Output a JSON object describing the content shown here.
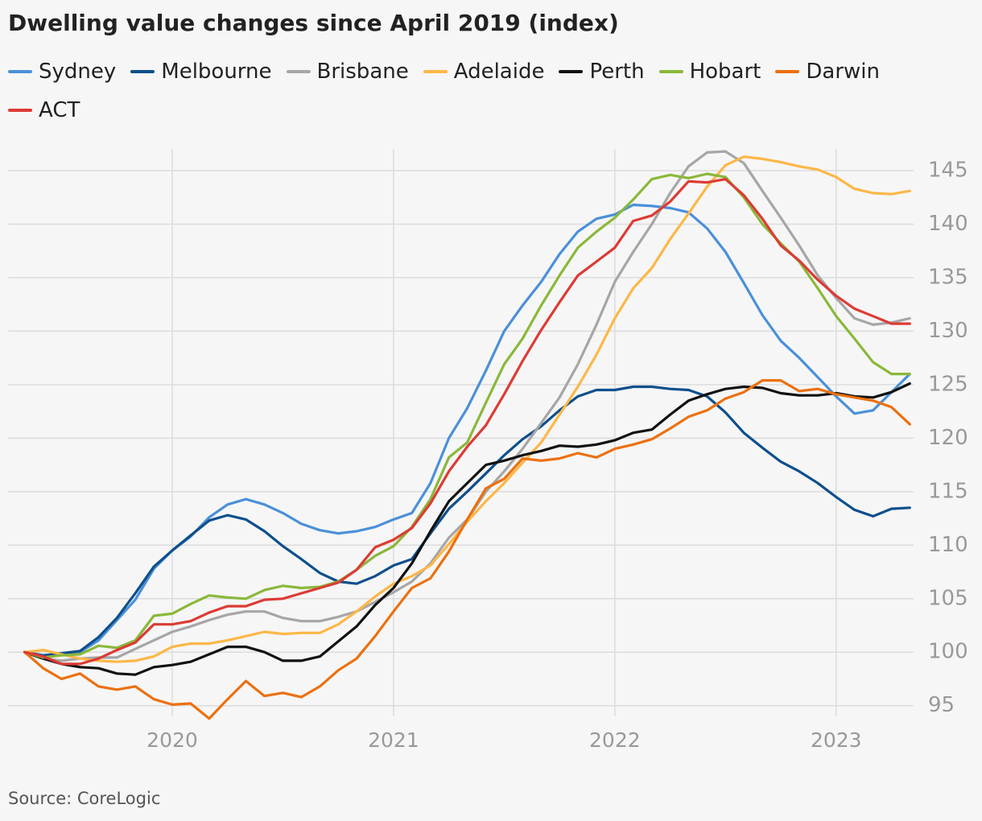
{
  "chart_data": {
    "type": "line",
    "title": "Dwelling value changes since April 2019 (index)",
    "source": "Source: CoreLogic",
    "x": [
      2019.333,
      2019.417,
      2019.5,
      2019.583,
      2019.667,
      2019.75,
      2019.833,
      2019.917,
      2020,
      2020.083,
      2020.167,
      2020.25,
      2020.333,
      2020.417,
      2020.5,
      2020.583,
      2020.667,
      2020.75,
      2020.833,
      2020.917,
      2021,
      2021.083,
      2021.167,
      2021.25,
      2021.333,
      2021.417,
      2021.5,
      2021.583,
      2021.667,
      2021.75,
      2021.833,
      2021.917,
      2022,
      2022.083,
      2022.167,
      2022.25,
      2022.333,
      2022.417,
      2022.5,
      2022.583,
      2022.667,
      2022.75,
      2022.833,
      2022.917,
      2023,
      2023.083,
      2023.167,
      2023.25,
      2023.333
    ],
    "xlim": [
      2019.258,
      2023.35
    ],
    "xticks": [
      2020,
      2021,
      2022,
      2023
    ],
    "ylim": [
      94,
      147
    ],
    "yticks": [
      95,
      100,
      105,
      110,
      115,
      120,
      125,
      130,
      135,
      140,
      145
    ],
    "grid": true,
    "legend": "top",
    "series": [
      {
        "name": "Sydney",
        "color": "#4a90d9",
        "values": [
          100,
          99.6,
          99.8,
          100,
          101.1,
          103,
          104.9,
          107.8,
          109.5,
          110.8,
          112.6,
          113.8,
          114.3,
          113.8,
          113,
          112,
          111.4,
          111.1,
          111.3,
          111.7,
          112.4,
          113,
          115.8,
          120,
          122.8,
          126.3,
          130,
          132.4,
          134.6,
          137.2,
          139.3,
          140.5,
          140.9,
          141.8,
          141.7,
          141.5,
          141.1,
          139.6,
          137.4,
          134.5,
          131.5,
          129.1,
          127.5,
          125.7,
          123.9,
          122.3,
          122.6,
          124.3,
          126
        ]
      },
      {
        "name": "Melbourne",
        "color": "#0e4f8c",
        "values": [
          100,
          99.7,
          99.9,
          100.1,
          101.4,
          103.2,
          105.5,
          108,
          109.5,
          110.9,
          112.3,
          112.8,
          112.4,
          111.3,
          109.9,
          108.7,
          107.4,
          106.6,
          106.4,
          107.1,
          108.1,
          108.7,
          111.1,
          113.4,
          115,
          116.7,
          118.4,
          119.9,
          121.1,
          122.6,
          123.9,
          124.5,
          124.5,
          124.8,
          124.8,
          124.6,
          124.5,
          123.9,
          122.4,
          120.5,
          119.1,
          117.8,
          116.9,
          115.8,
          114.5,
          113.3,
          112.7,
          113.4,
          113.5
        ]
      },
      {
        "name": "Brisbane",
        "color": "#a6a6a6",
        "values": [
          100,
          99.4,
          99.2,
          99.4,
          99.5,
          99.5,
          100.3,
          101.1,
          101.9,
          102.4,
          103,
          103.5,
          103.8,
          103.8,
          103.2,
          102.9,
          102.9,
          103.3,
          103.8,
          104.7,
          105.6,
          106.6,
          108.3,
          110.7,
          112.4,
          115,
          116.9,
          119,
          121.4,
          123.8,
          126.9,
          130.6,
          134.6,
          137.4,
          140,
          142.9,
          145.4,
          146.7,
          146.8,
          145.7,
          143.1,
          140.6,
          138,
          135.2,
          133.1,
          131.2,
          130.6,
          130.8,
          131.2
        ]
      },
      {
        "name": "Adelaide",
        "color": "#fdb747",
        "values": [
          100,
          100.2,
          99.8,
          99.4,
          99.2,
          99.1,
          99.2,
          99.6,
          100.5,
          100.8,
          100.8,
          101.1,
          101.5,
          101.9,
          101.7,
          101.8,
          101.8,
          102.6,
          103.8,
          105.2,
          106.4,
          107.1,
          108.1,
          110.1,
          112.2,
          114.1,
          115.8,
          117.7,
          119.6,
          122.2,
          124.8,
          127.8,
          131.2,
          134,
          135.9,
          138.6,
          141,
          143.5,
          145.5,
          146.3,
          146.1,
          145.8,
          145.4,
          145.1,
          144.4,
          143.3,
          142.9,
          142.8,
          143.1
        ]
      },
      {
        "name": "Perth",
        "color": "#111111",
        "values": [
          100,
          99.4,
          98.9,
          98.6,
          98.5,
          98,
          97.9,
          98.6,
          98.8,
          99.1,
          99.8,
          100.5,
          100.5,
          100,
          99.2,
          99.2,
          99.6,
          101,
          102.4,
          104.4,
          106,
          108.3,
          111.3,
          114.1,
          115.8,
          117.5,
          117.9,
          118.4,
          118.8,
          119.3,
          119.2,
          119.4,
          119.8,
          120.5,
          120.8,
          122.2,
          123.5,
          124.1,
          124.6,
          124.8,
          124.7,
          124.2,
          124,
          124,
          124.2,
          123.9,
          123.8,
          124.3,
          125.1
        ]
      },
      {
        "name": "Hobart",
        "color": "#8ab83a",
        "values": [
          100,
          99.5,
          99.7,
          99.8,
          100.6,
          100.4,
          101.1,
          103.4,
          103.6,
          104.5,
          105.3,
          105.1,
          105,
          105.8,
          106.2,
          106,
          106.1,
          106.6,
          107.7,
          109,
          109.9,
          111.7,
          114.3,
          118.2,
          119.6,
          123.3,
          126.9,
          129.3,
          132.4,
          135.2,
          137.8,
          139.3,
          140.6,
          142.3,
          144.2,
          144.6,
          144.3,
          144.7,
          144.4,
          142.5,
          140,
          138.2,
          136.5,
          134,
          131.4,
          129.3,
          127.1,
          126,
          126
        ]
      },
      {
        "name": "Darwin",
        "color": "#ec7010",
        "values": [
          100,
          98.5,
          97.5,
          98,
          96.8,
          96.5,
          96.8,
          95.6,
          95.1,
          95.2,
          93.8,
          95.6,
          97.3,
          95.9,
          96.2,
          95.8,
          96.8,
          98.3,
          99.4,
          101.5,
          103.8,
          106,
          106.9,
          109.4,
          112.4,
          115.3,
          116.2,
          118.1,
          117.9,
          118.1,
          118.6,
          118.2,
          119,
          119.4,
          119.9,
          120.9,
          122,
          122.6,
          123.7,
          124.3,
          125.4,
          125.4,
          124.4,
          124.6,
          124.1,
          123.8,
          123.5,
          122.9,
          121.3
        ]
      },
      {
        "name": "ACT",
        "color": "#dc3b34",
        "values": [
          100,
          99.6,
          98.9,
          98.9,
          99.4,
          100.2,
          100.9,
          102.6,
          102.6,
          102.9,
          103.7,
          104.3,
          104.3,
          104.9,
          105,
          105.5,
          106,
          106.5,
          107.7,
          109.8,
          110.5,
          111.6,
          113.9,
          116.9,
          119.2,
          121.2,
          124.1,
          127.2,
          130.1,
          132.7,
          135.2,
          136.5,
          137.8,
          140.3,
          140.8,
          142.1,
          144,
          143.9,
          144.2,
          142.7,
          140.5,
          138,
          136.6,
          134.8,
          133.3,
          132.1,
          131.4,
          130.7,
          130.7
        ]
      }
    ]
  }
}
